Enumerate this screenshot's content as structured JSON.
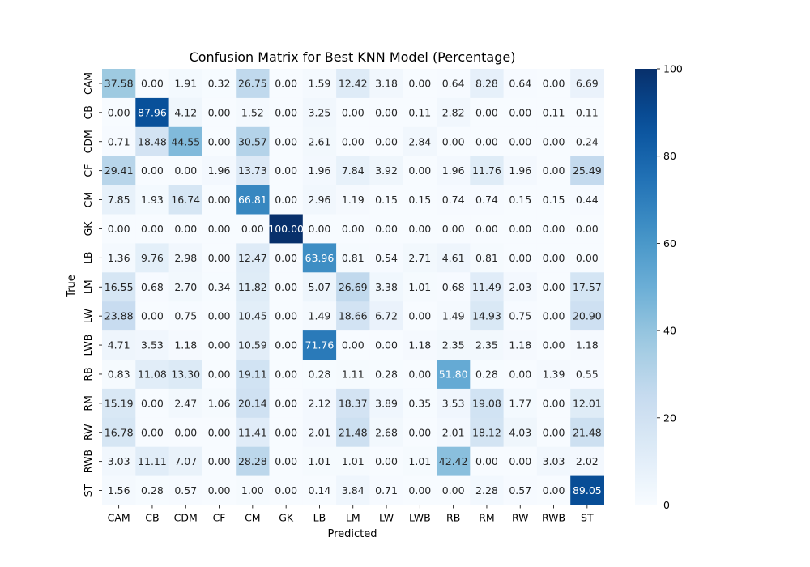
{
  "chart_data": {
    "type": "heatmap",
    "title": "Confusion Matrix for Best KNN Model (Percentage)",
    "xlabel": "Predicted",
    "ylabel": "True",
    "x_categories": [
      "CAM",
      "CB",
      "CDM",
      "CF",
      "CM",
      "GK",
      "LB",
      "LM",
      "LW",
      "LWB",
      "RB",
      "RM",
      "RW",
      "RWB",
      "ST"
    ],
    "y_categories": [
      "CAM",
      "CB",
      "CDM",
      "CF",
      "CM",
      "GK",
      "LB",
      "LM",
      "LW",
      "LWB",
      "RB",
      "RM",
      "RW",
      "RWB",
      "ST"
    ],
    "values": [
      [
        37.58,
        0.0,
        1.91,
        0.32,
        26.75,
        0.0,
        1.59,
        12.42,
        3.18,
        0.0,
        0.64,
        8.28,
        0.64,
        0.0,
        6.69
      ],
      [
        0.0,
        87.96,
        4.12,
        0.0,
        1.52,
        0.0,
        3.25,
        0.0,
        0.0,
        0.11,
        2.82,
        0.0,
        0.0,
        0.11,
        0.11
      ],
      [
        0.71,
        18.48,
        44.55,
        0.0,
        30.57,
        0.0,
        2.61,
        0.0,
        0.0,
        2.84,
        0.0,
        0.0,
        0.0,
        0.0,
        0.24
      ],
      [
        29.41,
        0.0,
        0.0,
        1.96,
        13.73,
        0.0,
        1.96,
        7.84,
        3.92,
        0.0,
        1.96,
        11.76,
        1.96,
        0.0,
        25.49
      ],
      [
        7.85,
        1.93,
        16.74,
        0.0,
        66.81,
        0.0,
        2.96,
        1.19,
        0.15,
        0.15,
        0.74,
        0.74,
        0.15,
        0.15,
        0.44
      ],
      [
        0.0,
        0.0,
        0.0,
        0.0,
        0.0,
        100.0,
        0.0,
        0.0,
        0.0,
        0.0,
        0.0,
        0.0,
        0.0,
        0.0,
        0.0
      ],
      [
        1.36,
        9.76,
        2.98,
        0.0,
        12.47,
        0.0,
        63.96,
        0.81,
        0.54,
        2.71,
        4.61,
        0.81,
        0.0,
        0.0,
        0.0
      ],
      [
        16.55,
        0.68,
        2.7,
        0.34,
        11.82,
        0.0,
        5.07,
        26.69,
        3.38,
        1.01,
        0.68,
        11.49,
        2.03,
        0.0,
        17.57
      ],
      [
        23.88,
        0.0,
        0.75,
        0.0,
        10.45,
        0.0,
        1.49,
        18.66,
        6.72,
        0.0,
        1.49,
        14.93,
        0.75,
        0.0,
        20.9
      ],
      [
        4.71,
        3.53,
        1.18,
        0.0,
        10.59,
        0.0,
        71.76,
        0.0,
        0.0,
        1.18,
        2.35,
        2.35,
        1.18,
        0.0,
        1.18
      ],
      [
        0.83,
        11.08,
        13.3,
        0.0,
        19.11,
        0.0,
        0.28,
        1.11,
        0.28,
        0.0,
        51.8,
        0.28,
        0.0,
        1.39,
        0.55
      ],
      [
        15.19,
        0.0,
        2.47,
        1.06,
        20.14,
        0.0,
        2.12,
        18.37,
        3.89,
        0.35,
        3.53,
        19.08,
        1.77,
        0.0,
        12.01
      ],
      [
        16.78,
        0.0,
        0.0,
        0.0,
        11.41,
        0.0,
        2.01,
        21.48,
        2.68,
        0.0,
        2.01,
        18.12,
        4.03,
        0.0,
        21.48
      ],
      [
        3.03,
        11.11,
        7.07,
        0.0,
        28.28,
        0.0,
        1.01,
        1.01,
        0.0,
        1.01,
        42.42,
        0.0,
        0.0,
        3.03,
        2.02
      ],
      [
        1.56,
        0.28,
        0.57,
        0.0,
        1.0,
        0.0,
        0.14,
        3.84,
        0.71,
        0.0,
        0.0,
        2.28,
        0.57,
        0.0,
        89.05
      ]
    ],
    "value_format": "0.00",
    "color_range": [
      0,
      100
    ],
    "colormap": "Blues",
    "colorbar_ticks": [
      0,
      20,
      40,
      60,
      80,
      100
    ],
    "colorbar_tick_labels": [
      "0",
      "20",
      "40",
      "60",
      "80",
      "100"
    ],
    "grid": false,
    "legend": "colorbar-right"
  }
}
